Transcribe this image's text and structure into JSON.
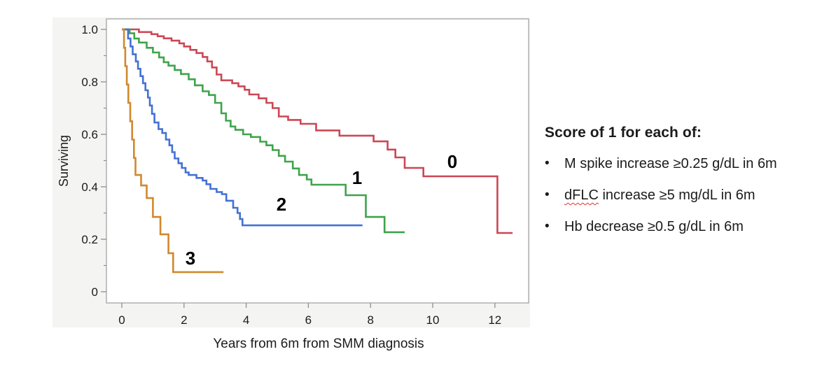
{
  "chart": {
    "y_axis_title": "Surviving",
    "x_axis_title": "Years from 6m from SMM diagnosis",
    "x_ticks": [
      "0",
      "2",
      "4",
      "6",
      "8",
      "10",
      "12"
    ],
    "y_ticks": [
      "0",
      "0.2",
      "0.4",
      "0.6",
      "0.8",
      "1.0"
    ]
  },
  "chart_data": {
    "type": "line",
    "subtype": "kaplan-meier-step",
    "title": "",
    "xlabel": "Years from 6m from SMM diagnosis",
    "ylabel": "Surviving",
    "xlim": [
      -0.5,
      13.1
    ],
    "ylim": [
      -0.045,
      1.045
    ],
    "grid": false,
    "legend_position": "curve-labels-inline",
    "x_tick_values": [
      0,
      2,
      4,
      6,
      8,
      10,
      12
    ],
    "y_tick_values": [
      0,
      0.2,
      0.4,
      0.6,
      0.8,
      1.0
    ],
    "y_minor_tick_values": [
      0.1,
      0.3,
      0.5,
      0.7,
      0.9
    ],
    "series": [
      {
        "name": "0",
        "color": "#cb4755",
        "points": [
          [
            0,
            1.0
          ],
          [
            0.55,
            0.99
          ],
          [
            0.95,
            0.982
          ],
          [
            1.15,
            0.974
          ],
          [
            1.35,
            0.966
          ],
          [
            1.6,
            0.957
          ],
          [
            1.85,
            0.947
          ],
          [
            2.0,
            0.935
          ],
          [
            2.2,
            0.922
          ],
          [
            2.4,
            0.91
          ],
          [
            2.6,
            0.895
          ],
          [
            2.75,
            0.878
          ],
          [
            2.9,
            0.855
          ],
          [
            3.05,
            0.828
          ],
          [
            3.2,
            0.806
          ],
          [
            3.55,
            0.795
          ],
          [
            3.75,
            0.783
          ],
          [
            3.95,
            0.77
          ],
          [
            4.1,
            0.752
          ],
          [
            4.4,
            0.737
          ],
          [
            4.65,
            0.72
          ],
          [
            4.85,
            0.7
          ],
          [
            5.05,
            0.668
          ],
          [
            5.35,
            0.655
          ],
          [
            5.75,
            0.64
          ],
          [
            6.25,
            0.615
          ],
          [
            7.0,
            0.595
          ],
          [
            8.1,
            0.573
          ],
          [
            8.55,
            0.542
          ],
          [
            8.8,
            0.512
          ],
          [
            9.1,
            0.472
          ],
          [
            9.7,
            0.44
          ],
          [
            12.08,
            0.224
          ],
          [
            12.57,
            0.224
          ]
        ]
      },
      {
        "name": "1",
        "color": "#3fa34c",
        "points": [
          [
            0,
            1.0
          ],
          [
            0.25,
            0.985
          ],
          [
            0.4,
            0.965
          ],
          [
            0.55,
            0.95
          ],
          [
            0.8,
            0.93
          ],
          [
            1.0,
            0.912
          ],
          [
            1.2,
            0.893
          ],
          [
            1.35,
            0.875
          ],
          [
            1.5,
            0.862
          ],
          [
            1.7,
            0.845
          ],
          [
            1.9,
            0.83
          ],
          [
            2.15,
            0.81
          ],
          [
            2.35,
            0.787
          ],
          [
            2.6,
            0.764
          ],
          [
            2.8,
            0.75
          ],
          [
            3.0,
            0.72
          ],
          [
            3.2,
            0.68
          ],
          [
            3.35,
            0.652
          ],
          [
            3.5,
            0.63
          ],
          [
            3.65,
            0.617
          ],
          [
            3.9,
            0.6
          ],
          [
            4.15,
            0.59
          ],
          [
            4.45,
            0.572
          ],
          [
            4.65,
            0.558
          ],
          [
            4.85,
            0.54
          ],
          [
            5.05,
            0.518
          ],
          [
            5.25,
            0.496
          ],
          [
            5.5,
            0.47
          ],
          [
            5.7,
            0.445
          ],
          [
            5.95,
            0.428
          ],
          [
            6.1,
            0.408
          ],
          [
            7.2,
            0.368
          ],
          [
            7.85,
            0.285
          ],
          [
            8.45,
            0.227
          ],
          [
            9.1,
            0.227
          ]
        ]
      },
      {
        "name": "2",
        "color": "#4371d5",
        "points": [
          [
            0,
            1.0
          ],
          [
            0.2,
            0.965
          ],
          [
            0.28,
            0.935
          ],
          [
            0.35,
            0.905
          ],
          [
            0.45,
            0.878
          ],
          [
            0.52,
            0.85
          ],
          [
            0.6,
            0.822
          ],
          [
            0.68,
            0.795
          ],
          [
            0.76,
            0.768
          ],
          [
            0.84,
            0.74
          ],
          [
            0.9,
            0.71
          ],
          [
            0.97,
            0.678
          ],
          [
            1.05,
            0.645
          ],
          [
            1.18,
            0.62
          ],
          [
            1.3,
            0.605
          ],
          [
            1.42,
            0.58
          ],
          [
            1.53,
            0.558
          ],
          [
            1.62,
            0.532
          ],
          [
            1.7,
            0.508
          ],
          [
            1.82,
            0.49
          ],
          [
            1.93,
            0.472
          ],
          [
            2.05,
            0.455
          ],
          [
            2.15,
            0.445
          ],
          [
            2.4,
            0.434
          ],
          [
            2.6,
            0.424
          ],
          [
            2.72,
            0.41
          ],
          [
            2.85,
            0.392
          ],
          [
            3.05,
            0.38
          ],
          [
            3.22,
            0.372
          ],
          [
            3.36,
            0.347
          ],
          [
            3.58,
            0.32
          ],
          [
            3.72,
            0.3
          ],
          [
            3.8,
            0.277
          ],
          [
            3.88,
            0.253
          ],
          [
            7.74,
            0.253
          ]
        ]
      },
      {
        "name": "3",
        "color": "#d1882e",
        "points": [
          [
            0,
            1.0
          ],
          [
            0.07,
            0.93
          ],
          [
            0.11,
            0.86
          ],
          [
            0.16,
            0.79
          ],
          [
            0.21,
            0.72
          ],
          [
            0.27,
            0.65
          ],
          [
            0.33,
            0.58
          ],
          [
            0.39,
            0.51
          ],
          [
            0.44,
            0.445
          ],
          [
            0.62,
            0.405
          ],
          [
            0.8,
            0.357
          ],
          [
            1.0,
            0.285
          ],
          [
            1.24,
            0.219
          ],
          [
            1.5,
            0.147
          ],
          [
            1.65,
            0.075
          ],
          [
            3.27,
            0.075
          ]
        ]
      }
    ]
  },
  "legend_panel": {
    "title": "Score of 1 for each of:",
    "bullet_char": "•",
    "bullets": [
      {
        "text": "M spike increase ≥0.25 g/dL in 6m"
      },
      {
        "word": "dFLC",
        "rest": " increase ≥5 mg/dL in 6m"
      },
      {
        "text": "Hb decrease ≥0.5 g/dL in 6m"
      }
    ]
  },
  "style": {
    "plot_bg": "#f4f4f2",
    "plot_inner_bg": "#ffffff",
    "plot_border": "#a3a3a3",
    "tick_color": "#8f8f8f",
    "text_color": "#1b1b1b"
  }
}
